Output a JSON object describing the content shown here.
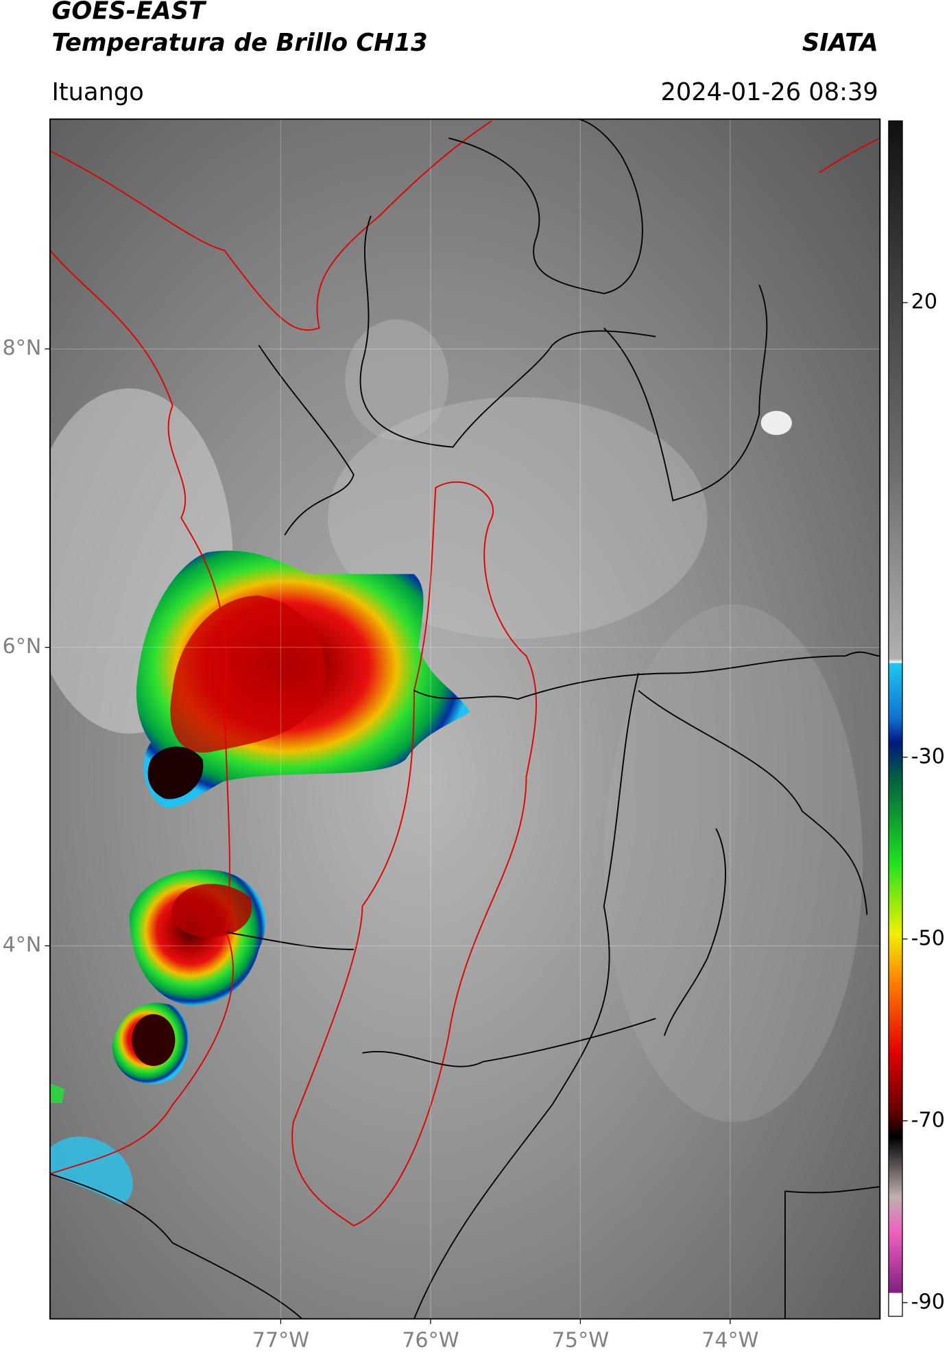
{
  "header": {
    "title": "GOES-EAST",
    "subtitle": "Temperatura de Brillo CH13",
    "brand": "SIATA",
    "location": "Ituango",
    "datetime": "2024-01-26 08:39"
  },
  "map": {
    "xlim": [
      -78.54,
      -73.0
    ],
    "ylim": [
      1.5,
      9.54
    ],
    "xticks": [
      {
        "value": -77,
        "label": "77°W"
      },
      {
        "value": -76,
        "label": "76°W"
      },
      {
        "value": -75,
        "label": "75°W"
      },
      {
        "value": -74,
        "label": "74°W"
      }
    ],
    "yticks": [
      {
        "value": 8,
        "label": "8°N"
      },
      {
        "value": 6,
        "label": "6°N"
      },
      {
        "value": 4,
        "label": "4°N"
      }
    ],
    "grid": true,
    "colorbar": {
      "lim": [
        -91.5,
        40
      ],
      "ticks": [
        20,
        -30,
        -50,
        -70,
        -90
      ]
    }
  }
}
